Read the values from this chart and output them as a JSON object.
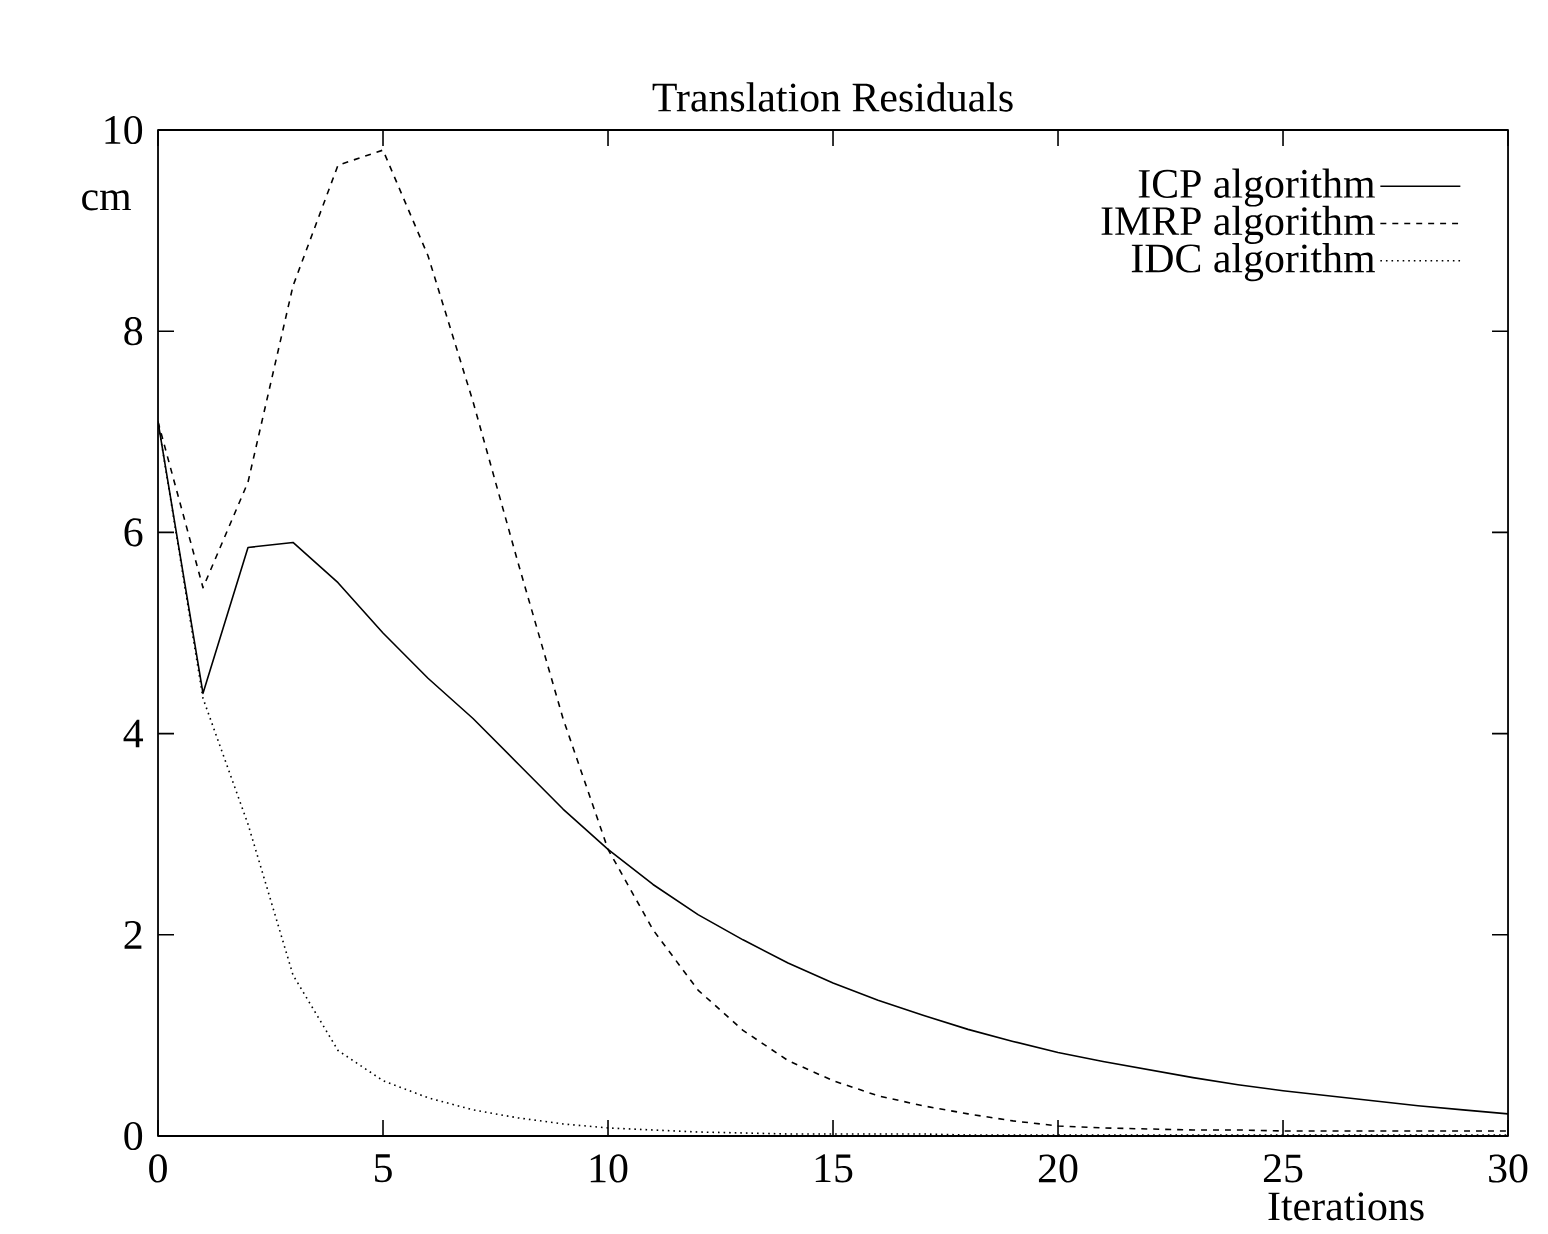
{
  "chart_data": {
    "type": "line",
    "title": "Translation Residuals",
    "xlabel": "Iterations",
    "ylabel": "cm",
    "x": [
      0,
      1,
      2,
      3,
      4,
      5,
      6,
      7,
      8,
      9,
      10,
      11,
      12,
      13,
      14,
      15,
      16,
      17,
      18,
      19,
      20,
      21,
      22,
      23,
      24,
      25,
      26,
      27,
      28,
      29,
      30
    ],
    "series": [
      {
        "name": "ICP algorithm",
        "color": "#000000",
        "line_style": "solid",
        "values": [
          7.1,
          4.4,
          5.85,
          5.9,
          5.5,
          5.0,
          4.55,
          4.15,
          3.7,
          3.25,
          2.85,
          2.5,
          2.2,
          1.95,
          1.72,
          1.52,
          1.35,
          1.2,
          1.06,
          0.94,
          0.83,
          0.74,
          0.66,
          0.58,
          0.51,
          0.45,
          0.4,
          0.35,
          0.3,
          0.26,
          0.22
        ]
      },
      {
        "name": "IMRP algorithm",
        "color": "#000000",
        "line_style": "dashed",
        "values": [
          7.1,
          5.45,
          6.5,
          8.45,
          9.65,
          9.8,
          8.75,
          7.3,
          5.7,
          4.15,
          2.85,
          2.05,
          1.45,
          1.05,
          0.75,
          0.55,
          0.4,
          0.3,
          0.22,
          0.15,
          0.1,
          0.08,
          0.07,
          0.06,
          0.06,
          0.05,
          0.05,
          0.05,
          0.05,
          0.05,
          0.05
        ]
      },
      {
        "name": "IDC algorithm",
        "color": "#000000",
        "line_style": "dotted",
        "values": [
          7.1,
          4.35,
          3.1,
          1.6,
          0.85,
          0.55,
          0.38,
          0.26,
          0.18,
          0.12,
          0.08,
          0.06,
          0.04,
          0.03,
          0.02,
          0.02,
          0.02,
          0.02,
          0.01,
          0.01,
          0.01,
          0.01,
          0.01,
          0.01,
          0.01,
          0.01,
          0.01,
          0.01,
          0.01,
          0.01,
          0.01
        ]
      }
    ],
    "xlim": [
      0,
      30
    ],
    "xticks": [
      0,
      5,
      10,
      15,
      20,
      25,
      30
    ],
    "ylim": [
      0,
      10
    ],
    "yticks": [
      0,
      2,
      4,
      6,
      8,
      10
    ],
    "grid": false,
    "legend": "top right",
    "marker": "none"
  }
}
